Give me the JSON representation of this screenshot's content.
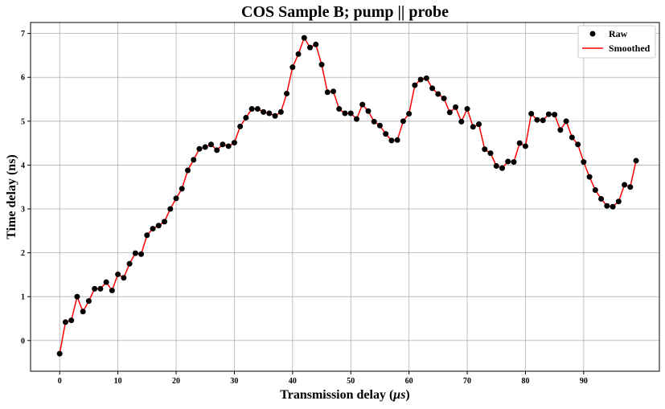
{
  "chart_data": {
    "type": "line",
    "title": "COS Sample B; pump || probe",
    "xlabel": "Transmission delay (μs)",
    "ylabel": "Time delay (ns)",
    "xlim": [
      -5,
      103
    ],
    "ylim": [
      -0.7,
      7.25
    ],
    "xticks": [
      0,
      10,
      20,
      30,
      40,
      50,
      60,
      70,
      80,
      90
    ],
    "yticks": [
      0,
      1,
      2,
      3,
      4,
      5,
      6,
      7
    ],
    "grid": true,
    "legend_position": "top-right",
    "series": [
      {
        "name": "Raw",
        "style": "markers",
        "color": "#000000",
        "x": [
          0,
          1,
          2,
          3,
          4,
          5,
          6,
          7,
          8,
          9,
          10,
          11,
          12,
          13,
          14,
          15,
          16,
          17,
          18,
          19,
          20,
          21,
          22,
          23,
          24,
          25,
          26,
          27,
          28,
          29,
          30,
          31,
          32,
          33,
          34,
          35,
          36,
          37,
          38,
          39,
          40,
          41,
          42,
          43,
          44,
          45,
          46,
          47,
          48,
          49,
          50,
          51,
          52,
          53,
          54,
          55,
          56,
          57,
          58,
          59,
          60,
          61,
          62,
          63,
          64,
          65,
          66,
          67,
          68,
          69,
          70,
          71,
          72,
          73,
          74,
          75,
          76,
          77,
          78,
          79,
          80,
          81,
          82,
          83,
          84,
          85,
          86,
          87,
          88,
          89,
          90,
          91,
          92,
          93,
          94,
          95,
          96,
          97,
          98,
          99
        ],
        "values": [
          -0.3,
          0.42,
          0.46,
          1.0,
          0.66,
          0.9,
          1.18,
          1.18,
          1.33,
          1.14,
          1.51,
          1.43,
          1.75,
          1.99,
          1.97,
          2.4,
          2.55,
          2.62,
          2.71,
          3.0,
          3.24,
          3.46,
          3.88,
          4.12,
          4.37,
          4.41,
          4.47,
          4.34,
          4.47,
          4.43,
          4.51,
          4.88,
          5.08,
          5.28,
          5.28,
          5.21,
          5.18,
          5.12,
          5.21,
          5.63,
          6.23,
          6.53,
          6.9,
          6.68,
          6.75,
          6.29,
          5.66,
          5.68,
          5.28,
          5.18,
          5.18,
          5.05,
          5.38,
          5.23,
          4.99,
          4.9,
          4.71,
          4.56,
          4.57,
          5.0,
          5.17,
          5.82,
          5.95,
          5.98,
          5.75,
          5.62,
          5.52,
          5.2,
          5.32,
          4.99,
          5.28,
          4.87,
          4.93,
          4.36,
          4.27,
          3.98,
          3.93,
          4.08,
          4.07,
          4.5,
          4.43,
          5.17,
          5.03,
          5.02,
          5.16,
          5.15,
          4.8,
          5.0,
          4.63,
          4.47,
          4.07,
          3.73,
          3.43,
          3.23,
          3.07,
          3.05,
          3.17,
          3.55,
          3.5,
          4.1
        ]
      },
      {
        "name": "Smoothed",
        "style": "line",
        "color": "#ff0000",
        "x": [
          0,
          1,
          2,
          3,
          4,
          5,
          6,
          7,
          8,
          9,
          10,
          11,
          12,
          13,
          14,
          15,
          16,
          17,
          18,
          19,
          20,
          21,
          22,
          23,
          24,
          25,
          26,
          27,
          28,
          29,
          30,
          31,
          32,
          33,
          34,
          35,
          36,
          37,
          38,
          39,
          40,
          41,
          42,
          43,
          44,
          45,
          46,
          47,
          48,
          49,
          50,
          51,
          52,
          53,
          54,
          55,
          56,
          57,
          58,
          59,
          60,
          61,
          62,
          63,
          64,
          65,
          66,
          67,
          68,
          69,
          70,
          71,
          72,
          73,
          74,
          75,
          76,
          77,
          78,
          79,
          80,
          81,
          82,
          83,
          84,
          85,
          86,
          87,
          88,
          89,
          90,
          91,
          92,
          93,
          94,
          95,
          96,
          97,
          98,
          99
        ],
        "values": [
          -0.3,
          0.42,
          0.46,
          1.0,
          0.66,
          0.9,
          1.18,
          1.18,
          1.33,
          1.14,
          1.51,
          1.43,
          1.75,
          1.99,
          1.97,
          2.4,
          2.55,
          2.62,
          2.71,
          3.0,
          3.24,
          3.46,
          3.88,
          4.12,
          4.37,
          4.41,
          4.47,
          4.34,
          4.47,
          4.43,
          4.51,
          4.88,
          5.08,
          5.28,
          5.28,
          5.21,
          5.18,
          5.12,
          5.21,
          5.63,
          6.23,
          6.53,
          6.9,
          6.68,
          6.75,
          6.29,
          5.66,
          5.68,
          5.28,
          5.18,
          5.18,
          5.05,
          5.38,
          5.23,
          4.99,
          4.9,
          4.71,
          4.56,
          4.57,
          5.0,
          5.17,
          5.82,
          5.95,
          5.98,
          5.75,
          5.62,
          5.52,
          5.2,
          5.32,
          4.99,
          5.28,
          4.87,
          4.93,
          4.36,
          4.27,
          3.98,
          3.93,
          4.08,
          4.07,
          4.5,
          4.43,
          5.17,
          5.03,
          5.02,
          5.16,
          5.15,
          4.8,
          5.0,
          4.63,
          4.47,
          4.07,
          3.73,
          3.43,
          3.23,
          3.07,
          3.05,
          3.17,
          3.55,
          3.5,
          4.1
        ]
      }
    ]
  }
}
